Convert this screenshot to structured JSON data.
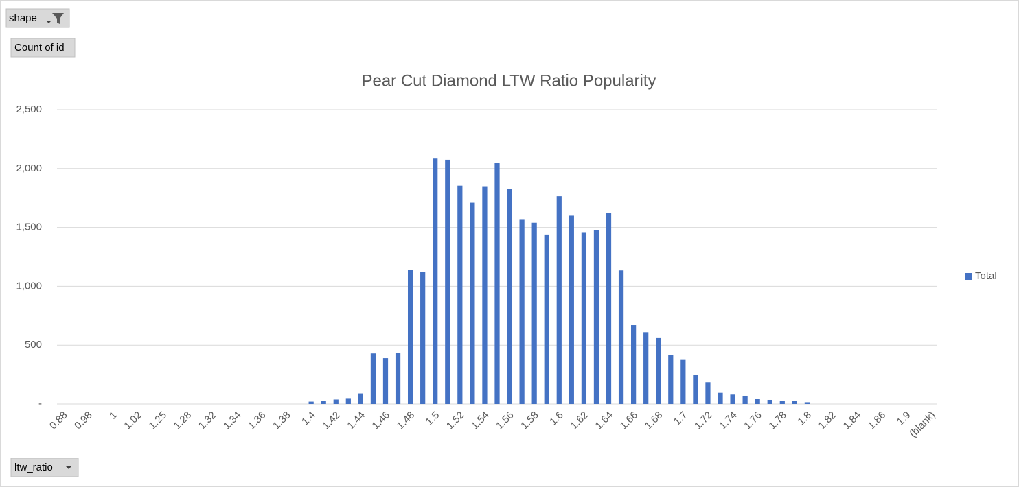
{
  "pivot": {
    "filter_field": "shape",
    "value_field": "Count of id",
    "axis_field": "ltw_ratio"
  },
  "chart_data": {
    "type": "bar",
    "title": "Pear Cut Diamond LTW Ratio Popularity",
    "categories": [
      "0.88",
      null,
      "0.98",
      null,
      "1",
      null,
      "1.02",
      null,
      "1.25",
      null,
      "1.28",
      null,
      "1.32",
      null,
      "1.34",
      null,
      "1.36",
      null,
      "1.38",
      null,
      "1.4",
      null,
      "1.42",
      null,
      "1.44",
      null,
      "1.46",
      null,
      "1.48",
      null,
      "1.5",
      null,
      "1.52",
      null,
      "1.54",
      null,
      "1.56",
      null,
      "1.58",
      null,
      "1.6",
      null,
      "1.62",
      null,
      "1.64",
      null,
      "1.66",
      null,
      "1.68",
      null,
      "1.7",
      null,
      "1.72",
      null,
      "1.74",
      null,
      "1.76",
      null,
      "1.78",
      null,
      "1.8",
      null,
      "1.82",
      null,
      "1.84",
      null,
      "1.86",
      null,
      "1.9",
      null,
      "(blank)"
    ],
    "series": [
      {
        "name": "Total",
        "color": "#4472c4",
        "values": [
          0,
          0,
          0,
          0,
          0,
          0,
          0,
          0,
          0,
          0,
          0,
          0,
          0,
          0,
          0,
          0,
          0,
          0,
          0,
          0,
          20,
          25,
          38,
          50,
          90,
          430,
          390,
          435,
          1140,
          1120,
          2085,
          2075,
          1855,
          1710,
          1850,
          2050,
          1825,
          1565,
          1540,
          1440,
          1765,
          1600,
          1460,
          1475,
          1620,
          1135,
          670,
          610,
          560,
          415,
          375,
          250,
          185,
          95,
          80,
          70,
          45,
          35,
          25,
          25,
          15,
          0,
          0,
          0,
          0,
          0,
          0,
          0,
          0,
          0,
          0
        ]
      }
    ],
    "ylim": [
      0,
      2500
    ],
    "yticks": [
      {
        "value": 0,
        "label": "-"
      },
      500,
      {
        "value": 1000,
        "label": "1,000"
      },
      {
        "value": 1500,
        "label": "1,500"
      },
      {
        "value": 2000,
        "label": "2,000"
      },
      {
        "value": 2500,
        "label": "2,500"
      }
    ],
    "grid": true,
    "legend": "right"
  }
}
